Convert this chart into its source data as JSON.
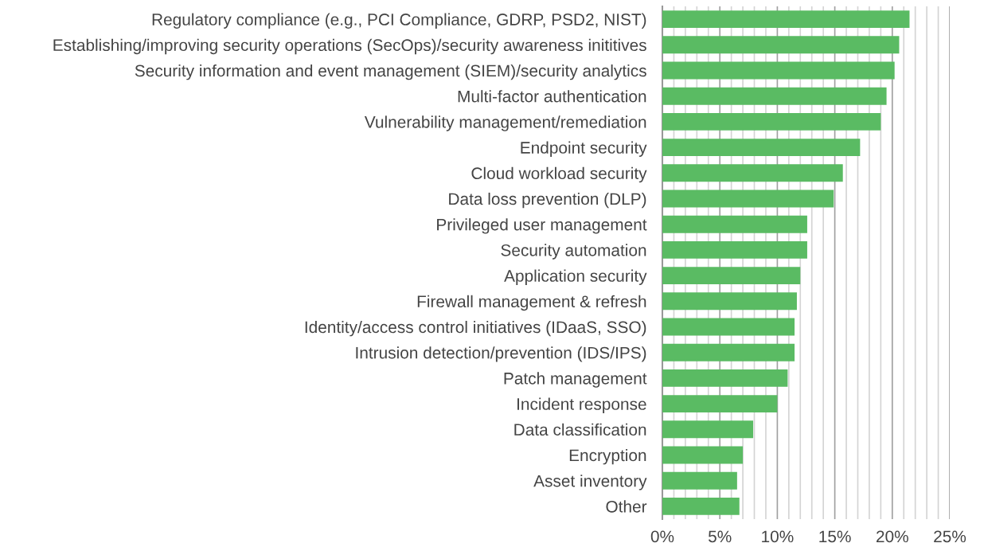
{
  "chart_data": {
    "type": "bar",
    "orientation": "horizontal",
    "color": "#5abb63",
    "grid": "x",
    "legend": false,
    "categories": [
      "Regulatory compliance (e.g., PCI Compliance, GDRP, PSD2, NIST)",
      "Establishing/improving security operations (SecOps)/security awareness inititives",
      "Security information and event management (SIEM)/security analytics",
      "Multi-factor authentication",
      "Vulnerability management/remediation",
      "Endpoint security",
      "Cloud workload security",
      "Data loss prevention (DLP)",
      "Privileged user management",
      "Security automation",
      "Application security",
      "Firewall management & refresh",
      "Identity/access control initiatives (IDaaS, SSO)",
      "Intrusion detection/prevention (IDS/IPS)",
      "Patch management",
      "Incident response",
      "Data classification",
      "Encryption",
      "Asset inventory",
      "Other"
    ],
    "values": [
      21.5,
      20.6,
      20.2,
      19.5,
      19.0,
      17.2,
      15.7,
      14.9,
      12.6,
      12.6,
      12.0,
      11.7,
      11.5,
      11.5,
      10.9,
      10.0,
      7.9,
      7.0,
      6.5,
      6.7
    ],
    "xlim": [
      0,
      25
    ],
    "xticks": [
      {
        "value": 0,
        "label": "0%"
      },
      {
        "value": 1,
        "label": null
      },
      {
        "value": 2,
        "label": null
      },
      {
        "value": 3,
        "label": null
      },
      {
        "value": 4,
        "label": null
      },
      {
        "value": 5,
        "label": "5%"
      },
      {
        "value": 6,
        "label": null
      },
      {
        "value": 7,
        "label": null
      },
      {
        "value": 8,
        "label": null
      },
      {
        "value": 9,
        "label": null
      },
      {
        "value": 10,
        "label": "10%"
      },
      {
        "value": 11,
        "label": null
      },
      {
        "value": 12,
        "label": null
      },
      {
        "value": 13,
        "label": null
      },
      {
        "value": 14,
        "label": null
      },
      {
        "value": 15,
        "label": "15%"
      },
      {
        "value": 16,
        "label": null
      },
      {
        "value": 17,
        "label": null
      },
      {
        "value": 18,
        "label": null
      },
      {
        "value": 19,
        "label": null
      },
      {
        "value": 20,
        "label": "20%"
      },
      {
        "value": 21,
        "label": null
      },
      {
        "value": 22,
        "label": null
      },
      {
        "value": 23,
        "label": null
      },
      {
        "value": 24,
        "label": null
      },
      {
        "value": 25,
        "label": "25%"
      }
    ]
  }
}
